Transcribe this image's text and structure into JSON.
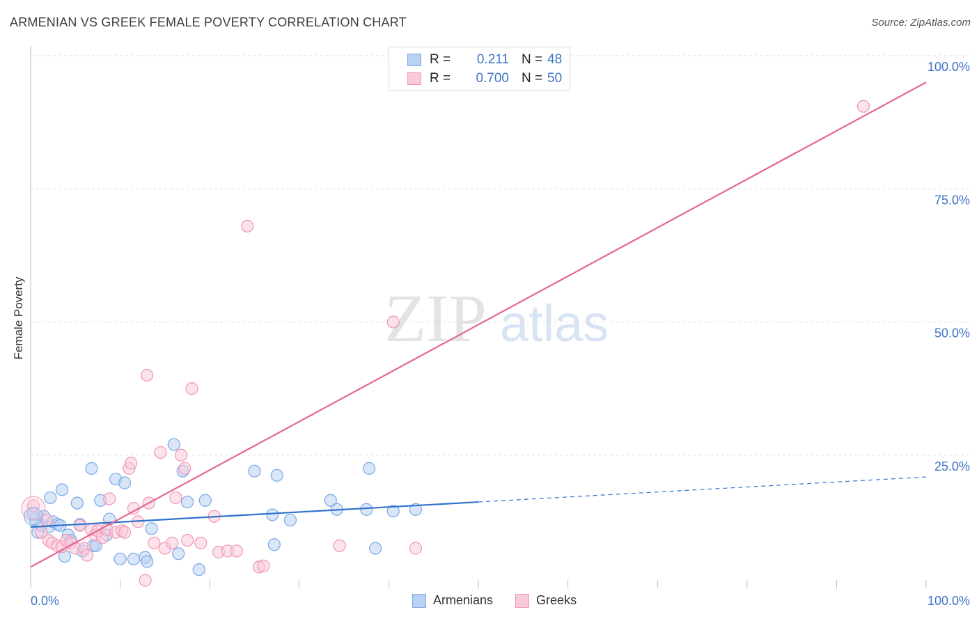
{
  "chart_data": {
    "type": "scatter",
    "title": "ARMENIAN VS GREEK FEMALE POVERTY CORRELATION CHART",
    "source": "Source: ZipAtlas.com",
    "xlabel": "",
    "ylabel": "Female Poverty",
    "xlim": [
      0,
      100
    ],
    "ylim": [
      0,
      100
    ],
    "x_tick_labels": [
      "0.0%",
      "100.0%"
    ],
    "y_tick_labels": [
      {
        "value": 25,
        "label": "25.0%"
      },
      {
        "value": 50,
        "label": "50.0%"
      },
      {
        "value": 75,
        "label": "75.0%"
      },
      {
        "value": 100,
        "label": "100.0%"
      }
    ],
    "grid": true,
    "legend_position": "top-center",
    "watermark": {
      "zip": "ZIP",
      "atlas": "atlas"
    },
    "series": [
      {
        "name": "Armenians",
        "color": "#7aa8e6",
        "fill": "#b9d2f3",
        "line_color": "#2f72cc",
        "R": "0.211",
        "N": "48",
        "trend": {
          "x0": 0,
          "y0": 11.5,
          "x1": 50,
          "y1": 16.2,
          "dash_to_x": 100,
          "dash_to_y": 20.9
        },
        "points": [
          [
            0.5,
            13.0
          ],
          [
            0.8,
            10.5
          ],
          [
            1.2,
            11.8
          ],
          [
            1.5,
            13.5
          ],
          [
            2.0,
            11.5
          ],
          [
            2.2,
            17.0
          ],
          [
            2.5,
            12.5
          ],
          [
            3.0,
            12.0
          ],
          [
            3.3,
            11.8
          ],
          [
            3.5,
            18.5
          ],
          [
            3.8,
            6.0
          ],
          [
            4.2,
            10.0
          ],
          [
            4.5,
            9.0
          ],
          [
            5.2,
            16.0
          ],
          [
            5.5,
            12.0
          ],
          [
            5.8,
            7.0
          ],
          [
            6.8,
            22.5
          ],
          [
            7.0,
            8.0
          ],
          [
            7.3,
            8.0
          ],
          [
            7.8,
            16.5
          ],
          [
            8.5,
            10.0
          ],
          [
            8.8,
            13.0
          ],
          [
            9.5,
            20.5
          ],
          [
            10.0,
            5.5
          ],
          [
            10.5,
            19.8
          ],
          [
            11.5,
            5.5
          ],
          [
            12.8,
            5.8
          ],
          [
            13.0,
            5.0
          ],
          [
            13.5,
            11.2
          ],
          [
            16.0,
            27.0
          ],
          [
            16.5,
            6.5
          ],
          [
            17.0,
            22.0
          ],
          [
            17.5,
            16.2
          ],
          [
            18.8,
            3.5
          ],
          [
            19.5,
            16.5
          ],
          [
            25.0,
            22.0
          ],
          [
            27.0,
            13.8
          ],
          [
            27.2,
            8.2
          ],
          [
            27.5,
            21.2
          ],
          [
            29.0,
            12.8
          ],
          [
            33.5,
            16.5
          ],
          [
            34.2,
            14.8
          ],
          [
            37.5,
            14.8
          ],
          [
            37.8,
            22.5
          ],
          [
            38.5,
            7.5
          ],
          [
            40.5,
            14.5
          ],
          [
            43.0,
            14.8
          ],
          [
            0.3,
            14.0
          ]
        ]
      },
      {
        "name": "Greeks",
        "color": "#f096b4",
        "fill": "#f9cadb",
        "line_color": "#e4668f",
        "R": "0.700",
        "N": "50",
        "trend": {
          "x0": 0,
          "y0": 4.0,
          "x1": 100,
          "y1": 95.0
        },
        "points": [
          [
            0.3,
            15.5
          ],
          [
            1.2,
            10.5
          ],
          [
            1.8,
            12.8
          ],
          [
            2.0,
            9.0
          ],
          [
            2.4,
            8.5
          ],
          [
            3.0,
            8.0
          ],
          [
            3.5,
            7.8
          ],
          [
            4.0,
            9.0
          ],
          [
            4.5,
            8.5
          ],
          [
            5.0,
            7.5
          ],
          [
            5.5,
            11.8
          ],
          [
            6.0,
            7.5
          ],
          [
            6.3,
            6.2
          ],
          [
            6.8,
            11.0
          ],
          [
            7.2,
            10.0
          ],
          [
            7.5,
            10.8
          ],
          [
            8.0,
            9.5
          ],
          [
            8.5,
            11.0
          ],
          [
            8.8,
            16.8
          ],
          [
            9.5,
            10.5
          ],
          [
            10.2,
            10.8
          ],
          [
            10.5,
            10.5
          ],
          [
            11.0,
            22.5
          ],
          [
            11.2,
            23.5
          ],
          [
            11.5,
            15.0
          ],
          [
            12.0,
            12.5
          ],
          [
            12.8,
            1.5
          ],
          [
            13.0,
            40.0
          ],
          [
            13.2,
            16.0
          ],
          [
            13.8,
            8.5
          ],
          [
            14.5,
            25.5
          ],
          [
            15.0,
            7.5
          ],
          [
            15.8,
            8.5
          ],
          [
            16.2,
            17.0
          ],
          [
            16.8,
            25.0
          ],
          [
            17.2,
            22.5
          ],
          [
            17.5,
            9.0
          ],
          [
            18.0,
            37.5
          ],
          [
            19.0,
            8.5
          ],
          [
            20.5,
            13.5
          ],
          [
            21.0,
            6.8
          ],
          [
            22.0,
            7.0
          ],
          [
            23.0,
            7.0
          ],
          [
            24.2,
            68.0
          ],
          [
            25.5,
            4.0
          ],
          [
            26.0,
            4.2
          ],
          [
            34.5,
            8.0
          ],
          [
            40.5,
            50.0
          ],
          [
            43.0,
            7.5
          ],
          [
            93.0,
            90.5
          ]
        ]
      }
    ]
  }
}
